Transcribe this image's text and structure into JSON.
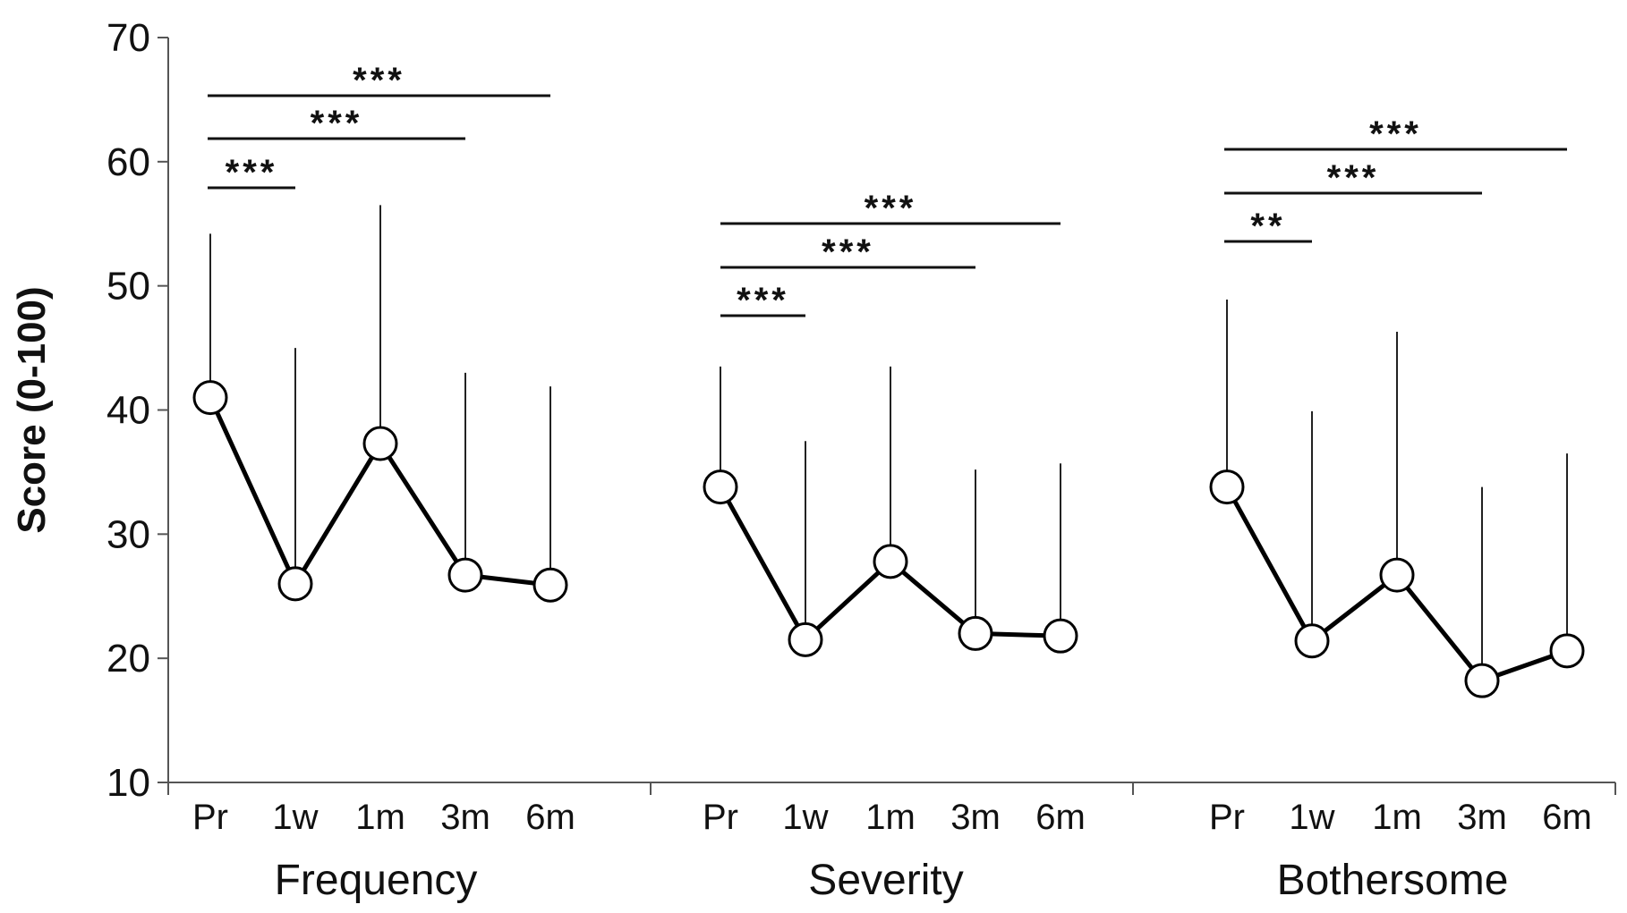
{
  "chart_data": {
    "type": "line",
    "title": "",
    "ylabel": "Score (0-100)",
    "ylim": [
      10,
      70
    ],
    "yticks": [
      10,
      20,
      30,
      40,
      50,
      60,
      70
    ],
    "grid": false,
    "legend": "none",
    "categories": [
      "Pr",
      "1w",
      "1m",
      "3m",
      "6m"
    ],
    "groups": [
      {
        "name": "Frequency",
        "values": [
          41,
          26,
          37.3,
          26.7,
          25.9
        ],
        "error_upper": [
          54.2,
          45,
          56.5,
          43,
          41.9
        ],
        "significance": [
          {
            "from": "Pr",
            "to": "1w",
            "label": "***"
          },
          {
            "from": "Pr",
            "to": "3m",
            "label": "***"
          },
          {
            "from": "Pr",
            "to": "6m",
            "label": "***"
          }
        ]
      },
      {
        "name": "Severity",
        "values": [
          33.8,
          21.5,
          27.8,
          22,
          21.8
        ],
        "error_upper": [
          43.5,
          37.5,
          43.5,
          35.2,
          35.7
        ],
        "significance": [
          {
            "from": "Pr",
            "to": "1w",
            "label": "***"
          },
          {
            "from": "Pr",
            "to": "3m",
            "label": "***"
          },
          {
            "from": "Pr",
            "to": "6m",
            "label": "***"
          }
        ]
      },
      {
        "name": "Bothersome",
        "values": [
          33.8,
          21.4,
          26.7,
          18.2,
          20.6
        ],
        "error_upper": [
          48.9,
          39.9,
          46.3,
          33.8,
          36.5
        ],
        "significance": [
          {
            "from": "Pr",
            "to": "1w",
            "label": "**"
          },
          {
            "from": "Pr",
            "to": "3m",
            "label": "***"
          },
          {
            "from": "Pr",
            "to": "6m",
            "label": "***"
          }
        ]
      }
    ]
  }
}
